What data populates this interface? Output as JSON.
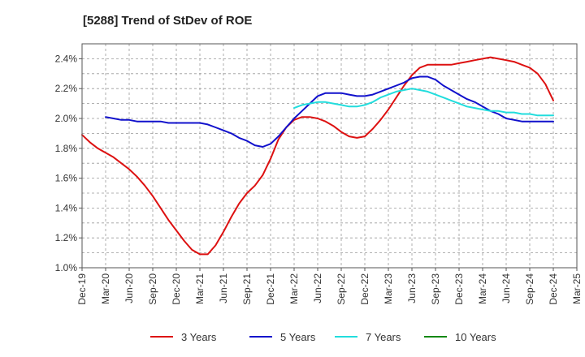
{
  "chart_data": {
    "type": "line",
    "title": "[5288]  Trend of StDev of ROE",
    "xlabel": "",
    "ylabel": "",
    "x_ticks": [
      "Dec-19",
      "Mar-20",
      "Jun-20",
      "Sep-20",
      "Dec-20",
      "Mar-21",
      "Jun-21",
      "Sep-21",
      "Dec-21",
      "Mar-22",
      "Jun-22",
      "Sep-22",
      "Dec-22",
      "Mar-23",
      "Jun-23",
      "Sep-23",
      "Dec-23",
      "Mar-24",
      "Jun-24",
      "Sep-24",
      "Dec-24",
      "Mar-25"
    ],
    "y_ticks": [
      "1.0%",
      "1.2%",
      "1.4%",
      "1.6%",
      "1.8%",
      "2.0%",
      "2.2%",
      "2.4%"
    ],
    "ylim": [
      1.0,
      2.5
    ],
    "y_unit": "%",
    "grid": true,
    "legend_position": "bottom",
    "series": [
      {
        "name": "3 Years",
        "color": "#dd1111",
        "x": [
          "Dec-19",
          "Jan-20",
          "Feb-20",
          "Mar-20",
          "Apr-20",
          "May-20",
          "Jun-20",
          "Jul-20",
          "Aug-20",
          "Sep-20",
          "Oct-20",
          "Nov-20",
          "Dec-20",
          "Jan-21",
          "Feb-21",
          "Mar-21",
          "Apr-21",
          "May-21",
          "Jun-21",
          "Jul-21",
          "Aug-21",
          "Sep-21",
          "Oct-21",
          "Nov-21",
          "Dec-21",
          "Jan-22",
          "Feb-22",
          "Mar-22",
          "Apr-22",
          "May-22",
          "Jun-22",
          "Jul-22",
          "Aug-22",
          "Sep-22",
          "Oct-22",
          "Nov-22",
          "Dec-22",
          "Jan-23",
          "Feb-23",
          "Mar-23",
          "Apr-23",
          "May-23",
          "Jun-23",
          "Jul-23",
          "Aug-23",
          "Sep-23",
          "Oct-23",
          "Nov-23",
          "Dec-23",
          "Jan-24",
          "Feb-24",
          "Mar-24",
          "Apr-24",
          "May-24",
          "Jun-24",
          "Jul-24",
          "Aug-24",
          "Sep-24",
          "Oct-24",
          "Nov-24",
          "Dec-24"
        ],
        "values": [
          1.89,
          1.84,
          1.8,
          1.77,
          1.74,
          1.7,
          1.66,
          1.61,
          1.55,
          1.48,
          1.4,
          1.32,
          1.25,
          1.18,
          1.12,
          1.09,
          1.09,
          1.15,
          1.24,
          1.34,
          1.43,
          1.5,
          1.55,
          1.62,
          1.73,
          1.86,
          1.94,
          1.99,
          2.01,
          2.01,
          2.0,
          1.98,
          1.95,
          1.91,
          1.88,
          1.87,
          1.88,
          1.93,
          1.99,
          2.06,
          2.14,
          2.22,
          2.29,
          2.34,
          2.36,
          2.36,
          2.36,
          2.36,
          2.37,
          2.38,
          2.39,
          2.4,
          2.41,
          2.4,
          2.39,
          2.38,
          2.36,
          2.34,
          2.3,
          2.23,
          2.12
        ]
      },
      {
        "name": "5 Years",
        "color": "#1111cc",
        "x": [
          "Mar-20",
          "Apr-20",
          "May-20",
          "Jun-20",
          "Jul-20",
          "Aug-20",
          "Sep-20",
          "Oct-20",
          "Nov-20",
          "Dec-20",
          "Jan-21",
          "Feb-21",
          "Mar-21",
          "Apr-21",
          "May-21",
          "Jun-21",
          "Jul-21",
          "Aug-21",
          "Sep-21",
          "Oct-21",
          "Nov-21",
          "Dec-21",
          "Jan-22",
          "Feb-22",
          "Mar-22",
          "Apr-22",
          "May-22",
          "Jun-22",
          "Jul-22",
          "Aug-22",
          "Sep-22",
          "Oct-22",
          "Nov-22",
          "Dec-22",
          "Jan-23",
          "Feb-23",
          "Mar-23",
          "Apr-23",
          "May-23",
          "Jun-23",
          "Jul-23",
          "Aug-23",
          "Sep-23",
          "Oct-23",
          "Nov-23",
          "Dec-23",
          "Jan-24",
          "Feb-24",
          "Mar-24",
          "Apr-24",
          "May-24",
          "Jun-24",
          "Jul-24",
          "Aug-24",
          "Sep-24",
          "Oct-24",
          "Nov-24",
          "Dec-24"
        ],
        "values": [
          2.01,
          2.0,
          1.99,
          1.99,
          1.98,
          1.98,
          1.98,
          1.98,
          1.97,
          1.97,
          1.97,
          1.97,
          1.97,
          1.96,
          1.94,
          1.92,
          1.9,
          1.87,
          1.85,
          1.82,
          1.81,
          1.83,
          1.88,
          1.94,
          2.0,
          2.05,
          2.1,
          2.15,
          2.17,
          2.17,
          2.17,
          2.16,
          2.15,
          2.15,
          2.16,
          2.18,
          2.2,
          2.22,
          2.24,
          2.27,
          2.28,
          2.28,
          2.26,
          2.22,
          2.19,
          2.16,
          2.13,
          2.11,
          2.08,
          2.05,
          2.03,
          2.0,
          1.99,
          1.98,
          1.98,
          1.98,
          1.98,
          1.98
        ]
      },
      {
        "name": "7 Years",
        "color": "#22dddd",
        "x": [
          "Mar-22",
          "Apr-22",
          "May-22",
          "Jun-22",
          "Jul-22",
          "Aug-22",
          "Sep-22",
          "Oct-22",
          "Nov-22",
          "Dec-22",
          "Jan-23",
          "Feb-23",
          "Mar-23",
          "Apr-23",
          "May-23",
          "Jun-23",
          "Jul-23",
          "Aug-23",
          "Sep-23",
          "Oct-23",
          "Nov-23",
          "Dec-23",
          "Jan-24",
          "Feb-24",
          "Mar-24",
          "Apr-24",
          "May-24",
          "Jun-24",
          "Jul-24",
          "Aug-24",
          "Sep-24",
          "Oct-24",
          "Nov-24",
          "Dec-24"
        ],
        "values": [
          2.07,
          2.09,
          2.1,
          2.11,
          2.11,
          2.1,
          2.09,
          2.08,
          2.08,
          2.09,
          2.11,
          2.14,
          2.16,
          2.18,
          2.19,
          2.2,
          2.19,
          2.18,
          2.16,
          2.14,
          2.12,
          2.1,
          2.08,
          2.07,
          2.06,
          2.05,
          2.05,
          2.04,
          2.04,
          2.03,
          2.03,
          2.02,
          2.02,
          2.02
        ]
      },
      {
        "name": "10 Years",
        "color": "#118811",
        "x": [],
        "values": []
      }
    ]
  }
}
